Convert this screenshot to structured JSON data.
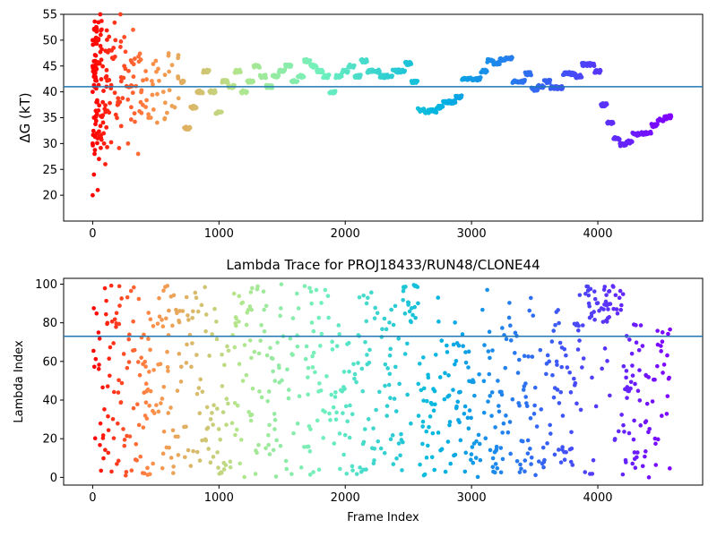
{
  "chart_data": [
    {
      "type": "scatter",
      "title": "",
      "xlabel": "",
      "ylabel": "ΔG (kT)",
      "xlim": [
        -230,
        4830
      ],
      "ylim": [
        15,
        55
      ],
      "xticks": [
        0,
        1000,
        2000,
        3000,
        4000
      ],
      "yticks": [
        20,
        25,
        30,
        35,
        40,
        45,
        50,
        55
      ],
      "hline": 41,
      "hline_color": "#1f77b4",
      "colormap": "rainbow (red at early frames to violet at late frames)",
      "frame_max": 4580,
      "series_points": [
        [
          0,
          20
        ],
        [
          0,
          30
        ],
        [
          0,
          40
        ],
        [
          0,
          45
        ],
        [
          0,
          50
        ],
        [
          10,
          24
        ],
        [
          10,
          35
        ],
        [
          15,
          28
        ],
        [
          20,
          44
        ],
        [
          25,
          47
        ],
        [
          30,
          38
        ],
        [
          40,
          21
        ],
        [
          40,
          31
        ],
        [
          45,
          50
        ],
        [
          50,
          27
        ],
        [
          60,
          55
        ],
        [
          80,
          38
        ],
        [
          90,
          30
        ],
        [
          100,
          26
        ],
        [
          110,
          43
        ],
        [
          130,
          36
        ],
        [
          150,
          48
        ],
        [
          180,
          50
        ],
        [
          200,
          38
        ],
        [
          220,
          55
        ],
        [
          250,
          45
        ],
        [
          280,
          30
        ],
        [
          300,
          41
        ],
        [
          320,
          52
        ],
        [
          360,
          28
        ],
        [
          380,
          38
        ],
        [
          420,
          44
        ],
        [
          460,
          35
        ],
        [
          500,
          46
        ],
        [
          560,
          40
        ],
        [
          600,
          47
        ],
        [
          650,
          37
        ],
        [
          700,
          42
        ],
        [
          750,
          33
        ],
        [
          800,
          37
        ],
        [
          850,
          40
        ],
        [
          900,
          44
        ],
        [
          950,
          40
        ],
        [
          1000,
          36
        ],
        [
          1050,
          42
        ],
        [
          1100,
          41
        ],
        [
          1150,
          44
        ],
        [
          1200,
          40
        ],
        [
          1250,
          42
        ],
        [
          1300,
          45
        ],
        [
          1350,
          43
        ],
        [
          1400,
          41
        ],
        [
          1450,
          43
        ],
        [
          1500,
          44
        ],
        [
          1550,
          45
        ],
        [
          1600,
          42
        ],
        [
          1650,
          43
        ],
        [
          1700,
          46
        ],
        [
          1750,
          45
        ],
        [
          1800,
          44
        ],
        [
          1850,
          43
        ],
        [
          1900,
          40
        ],
        [
          1950,
          43
        ],
        [
          2000,
          44
        ],
        [
          2050,
          45
        ],
        [
          2100,
          43
        ],
        [
          2150,
          46
        ],
        [
          2200,
          44
        ],
        [
          2250,
          44
        ],
        [
          2300,
          43
        ],
        [
          2350,
          43
        ],
        [
          2400,
          44
        ],
        [
          2450,
          44
        ],
        [
          2500,
          45.5
        ],
        [
          2550,
          42
        ],
        [
          2600,
          36.5
        ],
        [
          2650,
          36.2
        ],
        [
          2700,
          36.3
        ],
        [
          2750,
          37
        ],
        [
          2800,
          38
        ],
        [
          2850,
          38
        ],
        [
          2900,
          39
        ],
        [
          2950,
          42.5
        ],
        [
          3000,
          42.5
        ],
        [
          3050,
          42.5
        ],
        [
          3100,
          44
        ],
        [
          3150,
          46
        ],
        [
          3200,
          45.5
        ],
        [
          3250,
          46.3
        ],
        [
          3300,
          46.5
        ],
        [
          3350,
          42
        ],
        [
          3400,
          42
        ],
        [
          3450,
          43.5
        ],
        [
          3500,
          40.5
        ],
        [
          3550,
          41
        ],
        [
          3600,
          42
        ],
        [
          3650,
          40.8
        ],
        [
          3700,
          40.8
        ],
        [
          3750,
          43.5
        ],
        [
          3800,
          43.5
        ],
        [
          3850,
          43
        ],
        [
          3900,
          45.3
        ],
        [
          3950,
          45.3
        ],
        [
          4000,
          44
        ],
        [
          4050,
          37.5
        ],
        [
          4100,
          34
        ],
        [
          4150,
          31
        ],
        [
          4200,
          29.8
        ],
        [
          4250,
          30.3
        ],
        [
          4300,
          31.8
        ],
        [
          4350,
          31.9
        ],
        [
          4400,
          32
        ],
        [
          4450,
          33.5
        ],
        [
          4500,
          34.5
        ],
        [
          4550,
          35
        ],
        [
          4580,
          35.2
        ]
      ]
    },
    {
      "type": "scatter",
      "title": "Lambda Trace for PROJ18433/RUN48/CLONE44",
      "xlabel": "Frame Index",
      "ylabel": "Lambda Index",
      "xlim": [
        -230,
        4830
      ],
      "ylim": [
        -4,
        103
      ],
      "xticks": [
        0,
        1000,
        2000,
        3000,
        4000
      ],
      "yticks": [
        0,
        20,
        40,
        60,
        80,
        100
      ],
      "hline": 73,
      "hline_color": "#1f77b4",
      "colormap": "rainbow (red at early frames to violet at late frames)",
      "frame_max": 4580,
      "notes": "Dense scatter of lambda index (0–100) over frames; cluster near 80–100 between frames 2450–2600 and 3900–4200"
    }
  ]
}
